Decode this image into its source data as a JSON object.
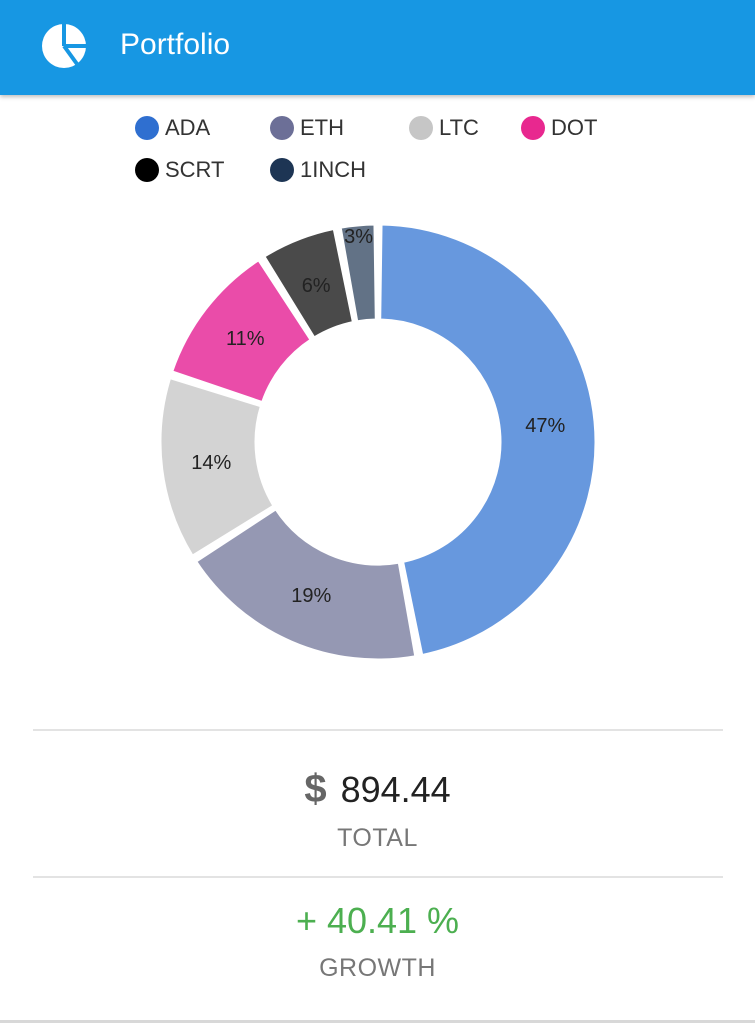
{
  "header": {
    "title": "Portfolio",
    "icon": "pie-chart-icon",
    "background_color": "#1797e3"
  },
  "legend": {
    "items": [
      {
        "label": "ADA",
        "color": "#2f6fd0"
      },
      {
        "label": "ETH",
        "color": "#6c6f97"
      },
      {
        "label": "LTC",
        "color": "#c6c6c6"
      },
      {
        "label": "DOT",
        "color": "#e8288f"
      },
      {
        "label": "SCRT",
        "color": "#000000"
      },
      {
        "label": "1INCH",
        "color": "#1d3554"
      }
    ]
  },
  "chart_data": {
    "type": "pie",
    "style": "donut",
    "categories": [
      "ADA",
      "ETH",
      "LTC",
      "DOT",
      "SCRT",
      "1INCH"
    ],
    "values": [
      47,
      19,
      14,
      11,
      6,
      3
    ],
    "labels": [
      "47%",
      "19%",
      "14%",
      "11%",
      "6%",
      "3%"
    ],
    "colors": [
      "#6798de",
      "#9598b3",
      "#d3d3d3",
      "#ea4ca9",
      "#4a4a4a",
      "#627286"
    ],
    "legend_position": "top"
  },
  "summary": {
    "currency_symbol": "$",
    "total_value": "894.44",
    "total_label": "TOTAL",
    "growth_value": "+ 40.41 %",
    "growth_label": "GROWTH",
    "growth_color": "#4caf50"
  }
}
